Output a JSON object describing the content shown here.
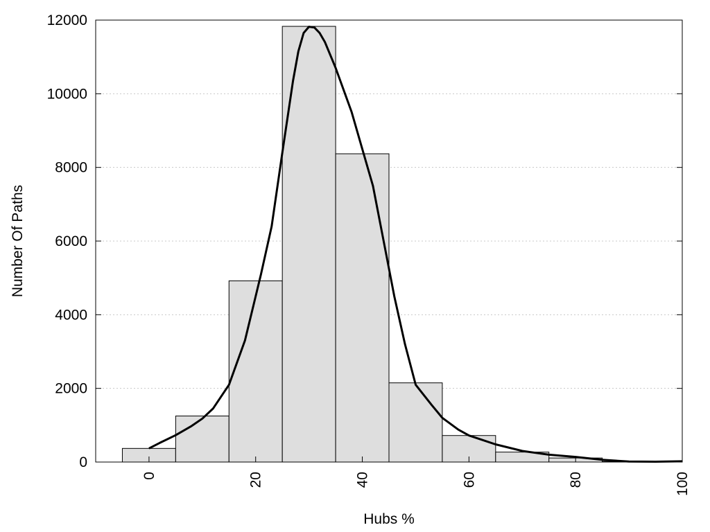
{
  "chart_data": {
    "type": "bar",
    "subtype": "histogram",
    "xlabel": "Hubs %",
    "ylabel": "Number Of Paths",
    "xlim": [
      -10,
      100
    ],
    "ylim": [
      0,
      12000
    ],
    "xticks": [
      0,
      20,
      40,
      60,
      80,
      100
    ],
    "yticks": [
      0,
      2000,
      4000,
      6000,
      8000,
      10000,
      12000
    ],
    "grid": "horizontal dotted",
    "bin_width": 10,
    "bins": [
      {
        "center": 0,
        "value": 370
      },
      {
        "center": 10,
        "value": 1250
      },
      {
        "center": 20,
        "value": 4920
      },
      {
        "center": 30,
        "value": 11830
      },
      {
        "center": 40,
        "value": 8370
      },
      {
        "center": 50,
        "value": 2150
      },
      {
        "center": 60,
        "value": 720
      },
      {
        "center": 70,
        "value": 270
      },
      {
        "center": 80,
        "value": 110
      },
      {
        "center": 90,
        "value": 15
      }
    ],
    "curve": {
      "x": [
        0,
        2,
        5,
        8,
        10,
        12,
        15,
        18,
        20,
        21,
        23,
        25,
        27,
        28,
        29,
        30,
        31,
        32,
        33,
        35,
        38,
        40,
        42,
        44,
        46,
        48,
        50,
        53,
        55,
        58,
        60,
        65,
        70,
        75,
        80,
        85,
        90,
        95,
        100
      ],
      "y": [
        370,
        520,
        730,
        980,
        1180,
        1450,
        2100,
        3300,
        4500,
        5100,
        6400,
        8400,
        10350,
        11150,
        11650,
        11820,
        11800,
        11650,
        11400,
        10700,
        9500,
        8500,
        7500,
        6000,
        4500,
        3200,
        2100,
        1550,
        1200,
        880,
        720,
        480,
        300,
        200,
        140,
        60,
        15,
        10,
        20
      ]
    },
    "colors": {
      "bar_fill": "#dedede",
      "bar_stroke": "#000000",
      "curve": "#000000",
      "grid": "#c8c8c8"
    }
  }
}
